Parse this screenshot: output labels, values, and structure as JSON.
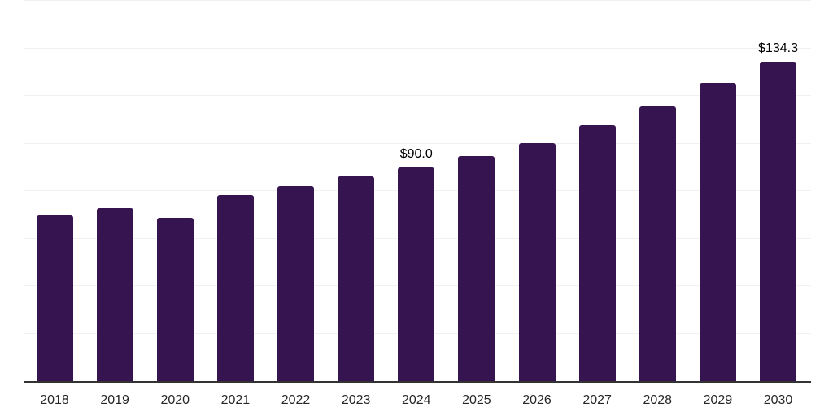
{
  "chart_data": {
    "type": "bar",
    "title": "",
    "xlabel": "",
    "ylabel": "",
    "categories": [
      "2018",
      "2019",
      "2020",
      "2021",
      "2022",
      "2023",
      "2024",
      "2025",
      "2026",
      "2027",
      "2028",
      "2029",
      "2030"
    ],
    "values": [
      69.9,
      72.8,
      68.6,
      78.4,
      82.1,
      86.2,
      90.0,
      94.7,
      100.3,
      107.7,
      115.7,
      125.4,
      134.3
    ],
    "data_labels": [
      "",
      "",
      "",
      "",
      "",
      "",
      "$90.0",
      "",
      "",
      "",
      "",
      "",
      "$134.3"
    ],
    "ylim": [
      0,
      160
    ],
    "gridline_step": 20,
    "grid": true,
    "y_tick_labels_visible": false,
    "legend_position": "none",
    "colors": {
      "bar": "#361450",
      "gridline": "#f1f1f1",
      "axis_line": "#333333",
      "data_label": "#000000",
      "tick_label": "#262626",
      "background": "#ffffff"
    }
  }
}
